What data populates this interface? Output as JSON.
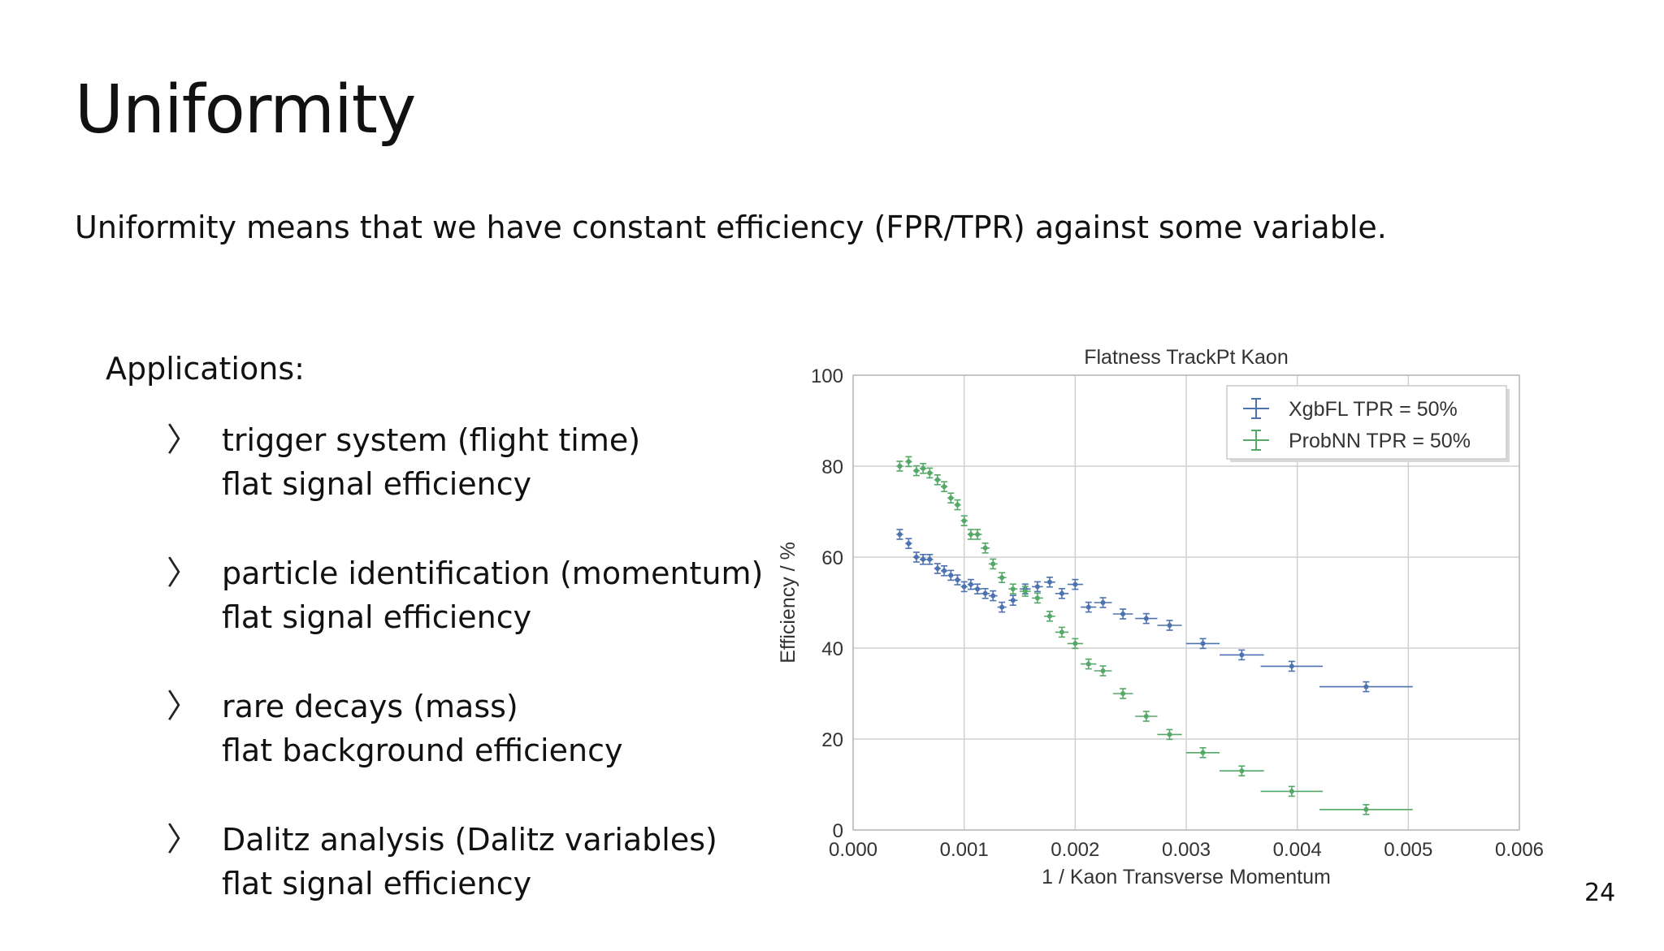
{
  "slide": {
    "title": "Uniformity",
    "subtitle": "Uniformity means that we have constant efficiency (FPR/TPR) against some variable.",
    "applications_heading": "Applications:",
    "applications": [
      {
        "line1": "trigger system (flight time)",
        "line2": "flat signal efficiency"
      },
      {
        "line1": "particle identification (momentum)",
        "line2": "flat signal efficiency"
      },
      {
        "line1": "rare decays (mass)",
        "line2": "flat background efficiency"
      },
      {
        "line1": "Dalitz analysis (Dalitz variables)",
        "line2": "flat signal efficiency"
      }
    ],
    "page_number": "24"
  },
  "chart_data": {
    "type": "scatter",
    "title": "Flatness TrackPt Kaon",
    "xlabel": "1 /  Kaon Transverse Momentum",
    "ylabel": "Efficiency / %",
    "xlim": [
      0.0,
      0.006
    ],
    "ylim": [
      0,
      100
    ],
    "xticks": [
      "0.000",
      "0.001",
      "0.002",
      "0.003",
      "0.004",
      "0.005",
      "0.006"
    ],
    "yticks": [
      "0",
      "20",
      "40",
      "60",
      "80",
      "100"
    ],
    "grid": true,
    "legend_position": "top-right",
    "series": [
      {
        "name": "XgbFL TPR = 50%",
        "color": "#4c72b0",
        "points": [
          [
            0.00042,
            65,
            3e-05
          ],
          [
            0.0005,
            63,
            3e-05
          ],
          [
            0.00057,
            60,
            3e-05
          ],
          [
            0.00063,
            59.5,
            3e-05
          ],
          [
            0.00069,
            59.5,
            3e-05
          ],
          [
            0.00076,
            57.5,
            3e-05
          ],
          [
            0.00082,
            57,
            3e-05
          ],
          [
            0.00088,
            56,
            3e-05
          ],
          [
            0.00094,
            55,
            3e-05
          ],
          [
            0.001,
            53.5,
            3e-05
          ],
          [
            0.00106,
            54,
            3e-05
          ],
          [
            0.00112,
            53,
            4e-05
          ],
          [
            0.00119,
            52,
            4e-05
          ],
          [
            0.00126,
            51.5,
            4e-05
          ],
          [
            0.00134,
            49,
            4e-05
          ],
          [
            0.00144,
            50.5,
            4e-05
          ],
          [
            0.00155,
            53,
            5e-05
          ],
          [
            0.00166,
            53.5,
            5e-05
          ],
          [
            0.00177,
            54.5,
            5e-05
          ],
          [
            0.00188,
            52,
            6e-05
          ],
          [
            0.002,
            54,
            7e-05
          ],
          [
            0.00212,
            49,
            7e-05
          ],
          [
            0.00225,
            50,
            8e-05
          ],
          [
            0.00243,
            47.5,
            9e-05
          ],
          [
            0.00264,
            46.5,
            0.0001
          ],
          [
            0.00285,
            45,
            0.00011
          ],
          [
            0.00315,
            41,
            0.00015
          ],
          [
            0.0035,
            38.5,
            0.0002
          ],
          [
            0.00395,
            36,
            0.00028
          ],
          [
            0.00462,
            31.5,
            0.00042
          ]
        ]
      },
      {
        "name": "ProbNN TPR = 50%",
        "color": "#55a868",
        "points": [
          [
            0.00042,
            80,
            3e-05
          ],
          [
            0.0005,
            81,
            3e-05
          ],
          [
            0.00057,
            79,
            3e-05
          ],
          [
            0.00063,
            79.5,
            3e-05
          ],
          [
            0.00069,
            78.5,
            3e-05
          ],
          [
            0.00076,
            77,
            3e-05
          ],
          [
            0.00082,
            75.5,
            3e-05
          ],
          [
            0.00088,
            73,
            3e-05
          ],
          [
            0.00094,
            71.5,
            3e-05
          ],
          [
            0.001,
            68,
            3e-05
          ],
          [
            0.00106,
            65,
            3e-05
          ],
          [
            0.00112,
            65,
            4e-05
          ],
          [
            0.00119,
            62,
            4e-05
          ],
          [
            0.00126,
            58.5,
            4e-05
          ],
          [
            0.00134,
            55.5,
            4e-05
          ],
          [
            0.00144,
            53,
            4e-05
          ],
          [
            0.00155,
            52.5,
            5e-05
          ],
          [
            0.00166,
            51,
            5e-05
          ],
          [
            0.00177,
            47,
            5e-05
          ],
          [
            0.00188,
            43.5,
            6e-05
          ],
          [
            0.002,
            41,
            7e-05
          ],
          [
            0.00212,
            36.5,
            7e-05
          ],
          [
            0.00225,
            35,
            8e-05
          ],
          [
            0.00243,
            30,
            9e-05
          ],
          [
            0.00264,
            25,
            0.0001
          ],
          [
            0.00285,
            21,
            0.00011
          ],
          [
            0.00315,
            17,
            0.00015
          ],
          [
            0.0035,
            13,
            0.0002
          ],
          [
            0.00395,
            8.5,
            0.00028
          ],
          [
            0.00462,
            4.5,
            0.00042
          ]
        ]
      }
    ]
  }
}
